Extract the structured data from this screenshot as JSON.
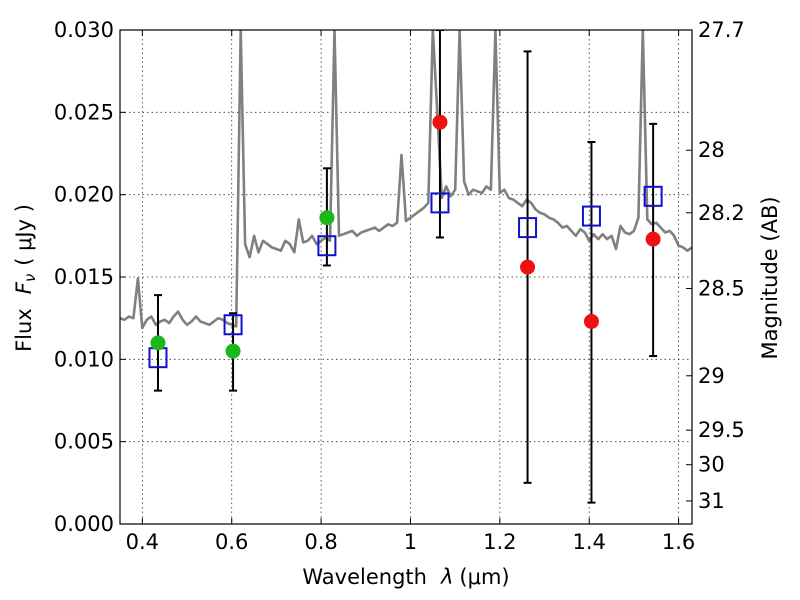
{
  "chart_data": {
    "type": "scatter",
    "xlabel": {
      "text": "Wavelength",
      "symbol": "λ",
      "unit": "(μm)"
    },
    "ylabel": {
      "text": "Flux",
      "symbol": "F",
      "subscript": "ν",
      "unit": "( μJy )"
    },
    "y2label": "Magnitude (AB)",
    "xlim": [
      0.35,
      1.63
    ],
    "ylim": [
      0.0,
      0.03
    ],
    "x_ticks": [
      0.4,
      0.6,
      0.8,
      1.0,
      1.2,
      1.4,
      1.6
    ],
    "x_tick_labels": [
      "0.4",
      "0.6",
      "0.8",
      "1",
      "1.2",
      "1.4",
      "1.6"
    ],
    "y_ticks": [
      0.0,
      0.005,
      0.01,
      0.015,
      0.02,
      0.025,
      0.03
    ],
    "y_tick_labels": [
      "0.000",
      "0.005",
      "0.010",
      "0.015",
      "0.020",
      "0.025",
      "0.030"
    ],
    "y2_ticks": [
      {
        "label": "27.7",
        "flux": 0.03
      },
      {
        "label": "28",
        "flux": 0.0227
      },
      {
        "label": "28.2",
        "flux": 0.0189
      },
      {
        "label": "28.5",
        "flux": 0.0143
      },
      {
        "label": "29",
        "flux": 0.009
      },
      {
        "label": "29.5",
        "flux": 0.0057
      },
      {
        "label": "30",
        "flux": 0.0036
      },
      {
        "label": "31",
        "flux": 0.0014
      }
    ],
    "grid": true,
    "colors": {
      "spectrum": "#808080",
      "green_points": "#1bb81b",
      "red_points": "#ee1111",
      "model_squares": "#1111cc",
      "errorbar": "#000000"
    },
    "series": [
      {
        "kind": "line",
        "x": [
          0.35,
          0.36,
          0.37,
          0.38,
          0.39,
          0.4,
          0.41,
          0.42,
          0.43,
          0.44,
          0.45,
          0.46,
          0.47,
          0.48,
          0.49,
          0.5,
          0.51,
          0.52,
          0.53,
          0.54,
          0.55,
          0.56,
          0.57,
          0.58,
          0.59,
          0.6,
          0.61,
          0.62,
          0.63,
          0.64,
          0.65,
          0.66,
          0.67,
          0.68,
          0.69,
          0.7,
          0.71,
          0.72,
          0.73,
          0.74,
          0.75,
          0.76,
          0.77,
          0.78,
          0.79,
          0.8,
          0.81,
          0.82,
          0.83,
          0.84,
          0.85,
          0.86,
          0.87,
          0.88,
          0.89,
          0.9,
          0.91,
          0.92,
          0.93,
          0.94,
          0.95,
          0.96,
          0.97,
          0.98,
          0.99,
          1.0,
          1.01,
          1.02,
          1.03,
          1.04,
          1.05,
          1.06,
          1.07,
          1.08,
          1.09,
          1.1,
          1.11,
          1.12,
          1.13,
          1.14,
          1.15,
          1.16,
          1.17,
          1.18,
          1.19,
          1.2,
          1.21,
          1.22,
          1.23,
          1.24,
          1.25,
          1.26,
          1.27,
          1.28,
          1.29,
          1.3,
          1.31,
          1.32,
          1.33,
          1.34,
          1.35,
          1.36,
          1.37,
          1.38,
          1.39,
          1.4,
          1.41,
          1.42,
          1.43,
          1.44,
          1.45,
          1.46,
          1.47,
          1.48,
          1.49,
          1.5,
          1.51,
          1.52,
          1.53,
          1.54,
          1.55,
          1.56,
          1.57,
          1.58,
          1.59,
          1.6,
          1.61,
          1.62,
          1.63
        ],
        "y": [
          0.0125,
          0.0124,
          0.0126,
          0.0125,
          0.0149,
          0.0119,
          0.0124,
          0.0126,
          0.0121,
          0.0123,
          0.0124,
          0.0122,
          0.0126,
          0.0129,
          0.0124,
          0.0121,
          0.0123,
          0.0126,
          0.0123,
          0.0122,
          0.0121,
          0.0123,
          0.0125,
          0.0124,
          0.0122,
          0.0121,
          0.012,
          0.03,
          0.017,
          0.0162,
          0.0175,
          0.0165,
          0.0172,
          0.017,
          0.0168,
          0.0167,
          0.0166,
          0.0172,
          0.017,
          0.0165,
          0.0185,
          0.0171,
          0.0172,
          0.0175,
          0.017,
          0.0172,
          0.0174,
          0.0172,
          0.03,
          0.0175,
          0.0176,
          0.0177,
          0.0178,
          0.0175,
          0.0177,
          0.0178,
          0.0179,
          0.018,
          0.0178,
          0.018,
          0.0182,
          0.0181,
          0.0183,
          0.0224,
          0.0184,
          0.0186,
          0.0188,
          0.019,
          0.0192,
          0.0195,
          0.03,
          0.025,
          0.0198,
          0.0205,
          0.0199,
          0.0203,
          0.03,
          0.0208,
          0.02,
          0.0203,
          0.0202,
          0.0201,
          0.0205,
          0.0203,
          0.03,
          0.0201,
          0.0203,
          0.0198,
          0.0197,
          0.0195,
          0.0193,
          0.0197,
          0.0195,
          0.0191,
          0.0189,
          0.0188,
          0.0186,
          0.0185,
          0.0183,
          0.018,
          0.0181,
          0.0178,
          0.0175,
          0.0179,
          0.0177,
          0.0172,
          0.0176,
          0.0173,
          0.0176,
          0.0173,
          0.0175,
          0.0167,
          0.0181,
          0.0177,
          0.0176,
          0.0178,
          0.0186,
          0.03,
          0.0185,
          0.0182,
          0.0183,
          0.018,
          0.0177,
          0.0178,
          0.0175,
          0.0169,
          0.0168,
          0.0166,
          0.0168
        ]
      },
      {
        "kind": "errorbar",
        "x": [
          0.435,
          0.603,
          0.813,
          1.066,
          1.262,
          1.405,
          1.543
        ],
        "yerr_low": [
          0.0081,
          0.0081,
          0.0157,
          0.0174,
          0.0025,
          0.0013,
          0.0102
        ],
        "yerr_high": [
          0.0139,
          0.0128,
          0.0216,
          0.03,
          0.0287,
          0.0232,
          0.0243
        ]
      },
      {
        "kind": "circle",
        "color": "green",
        "x": [
          0.435,
          0.603,
          0.813
        ],
        "y": [
          0.011,
          0.0105,
          0.0186
        ]
      },
      {
        "kind": "circle",
        "color": "red",
        "x": [
          1.066,
          1.262,
          1.405,
          1.543
        ],
        "y": [
          0.0244,
          0.0156,
          0.0123,
          0.0173
        ]
      },
      {
        "kind": "square",
        "color": "blue",
        "x": [
          0.435,
          0.603,
          0.813,
          1.066,
          1.262,
          1.405,
          1.543
        ],
        "y": [
          0.0101,
          0.0121,
          0.0169,
          0.0195,
          0.018,
          0.0187,
          0.0199
        ]
      }
    ]
  }
}
